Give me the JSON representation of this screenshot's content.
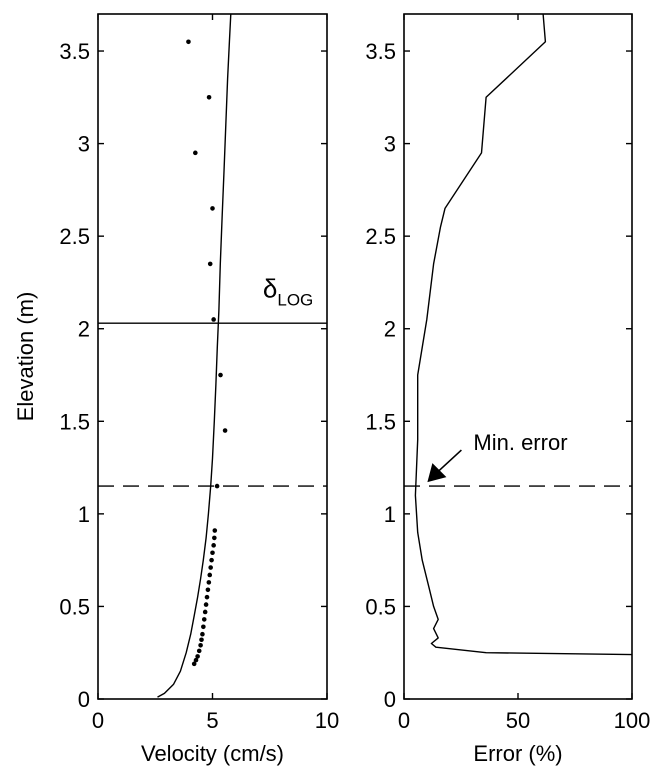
{
  "chart_data": [
    {
      "type": "line",
      "title": "",
      "xlabel": "Velocity (cm/s)",
      "ylabel": "Elevation (m)",
      "xlim": [
        0,
        10
      ],
      "ylim": [
        0,
        3.7
      ],
      "xticks": [
        "0",
        "5",
        "10"
      ],
      "yticks": [
        "0",
        "0.5",
        "1",
        "1.5",
        "2",
        "2.5",
        "3",
        "3.5"
      ],
      "grid": false,
      "series": [
        {
          "kind": "line",
          "x": [
            2.6,
            2.9,
            3.3,
            3.6,
            3.85,
            4.05,
            4.2,
            4.35,
            4.48,
            4.6,
            4.72,
            4.82,
            4.92,
            5.0,
            5.08,
            5.15,
            5.21,
            5.28,
            5.34,
            5.42,
            5.5,
            5.58,
            5.66,
            5.74,
            5.8
          ],
          "y": [
            0.01,
            0.03,
            0.08,
            0.15,
            0.25,
            0.35,
            0.45,
            0.55,
            0.65,
            0.75,
            0.87,
            1.0,
            1.15,
            1.3,
            1.5,
            1.7,
            1.9,
            2.1,
            2.35,
            2.6,
            2.85,
            3.1,
            3.35,
            3.55,
            3.7
          ]
        },
        {
          "kind": "scatter",
          "x": [
            3.95,
            4.85,
            4.25,
            5.0,
            4.9,
            5.05,
            5.35,
            5.55,
            5.2,
            5.1,
            5.08,
            5.05,
            5.0,
            4.96,
            4.92,
            4.88,
            4.84,
            4.8,
            4.76,
            4.72,
            4.68,
            4.64,
            4.6,
            4.56,
            4.52,
            4.48,
            4.42,
            4.35,
            4.28,
            4.2
          ],
          "y": [
            3.55,
            3.25,
            2.95,
            2.65,
            2.35,
            2.05,
            1.75,
            1.45,
            1.15,
            0.91,
            0.87,
            0.83,
            0.79,
            0.75,
            0.71,
            0.67,
            0.63,
            0.59,
            0.55,
            0.51,
            0.47,
            0.43,
            0.39,
            0.35,
            0.32,
            0.29,
            0.26,
            0.23,
            0.21,
            0.19
          ]
        }
      ],
      "hlines": [
        {
          "y": 2.03,
          "style": "solid"
        },
        {
          "y": 1.15,
          "style": "dashed"
        }
      ],
      "annotations": [
        {
          "text": "δ",
          "subscript": "LOG",
          "x": 7.2,
          "y": 2.17
        }
      ]
    },
    {
      "type": "line",
      "title": "",
      "xlabel": "Error (%)",
      "ylabel": "",
      "xlim": [
        0,
        100
      ],
      "ylim": [
        0,
        3.7
      ],
      "xticks": [
        "0",
        "50",
        "100"
      ],
      "yticks": [
        "0",
        "0.5",
        "1",
        "1.5",
        "2",
        "2.5",
        "3",
        "3.5"
      ],
      "grid": false,
      "series": [
        {
          "kind": "line",
          "x": [
            100,
            36,
            14,
            12,
            15,
            13,
            15,
            13,
            11,
            8,
            6,
            5,
            6,
            6,
            10,
            13,
            16,
            18,
            34,
            36,
            62,
            61
          ],
          "y": [
            0.24,
            0.25,
            0.28,
            0.3,
            0.33,
            0.38,
            0.43,
            0.5,
            0.6,
            0.75,
            0.9,
            1.1,
            1.4,
            1.75,
            2.05,
            2.35,
            2.55,
            2.65,
            2.95,
            3.25,
            3.55,
            3.7
          ]
        }
      ],
      "hlines": [
        {
          "y": 1.15,
          "style": "dashed"
        }
      ],
      "annotations": [
        {
          "text": "Min. error",
          "arrow_to": {
            "x": 5,
            "y": 1.15
          }
        }
      ]
    }
  ]
}
